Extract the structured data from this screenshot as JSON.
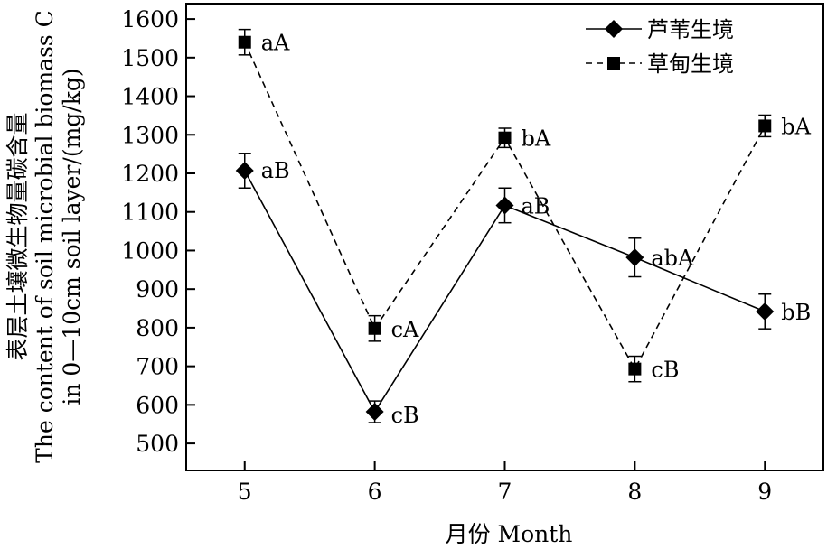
{
  "chart_data": {
    "type": "line",
    "x": [
      5,
      6,
      7,
      8,
      9
    ],
    "xticks": [
      "5",
      "6",
      "7",
      "8",
      "9"
    ],
    "xlim": [
      4.55,
      9.45
    ],
    "ylim": [
      430,
      1640
    ],
    "yticks": [
      500,
      600,
      700,
      800,
      900,
      1000,
      1100,
      1200,
      1300,
      1400,
      1500,
      1600
    ],
    "xlabel": "月份 Month",
    "ylabel_lines": [
      "表层土壤微生物量碳含量",
      "The content of soil microbial biomass C",
      "in 0—10cm soil layer/(mg/kg)"
    ],
    "grid": false,
    "legend_position": "top-right",
    "series": [
      {
        "name": "芦苇生境",
        "marker": "diamond",
        "line_style": "solid",
        "values": [
          1207,
          582,
          1117,
          982,
          842
        ],
        "errors": [
          45,
          28,
          45,
          50,
          45
        ],
        "labels": [
          "aB",
          "cB",
          "aB",
          "abA",
          "bB"
        ]
      },
      {
        "name": "草甸生境",
        "marker": "square",
        "line_style": "dashed",
        "values": [
          1540,
          798,
          1292,
          693,
          1323
        ],
        "errors": [
          33,
          33,
          25,
          33,
          28
        ],
        "labels": [
          "aA",
          "cA",
          "bA",
          "cB",
          "bA"
        ]
      }
    ]
  }
}
